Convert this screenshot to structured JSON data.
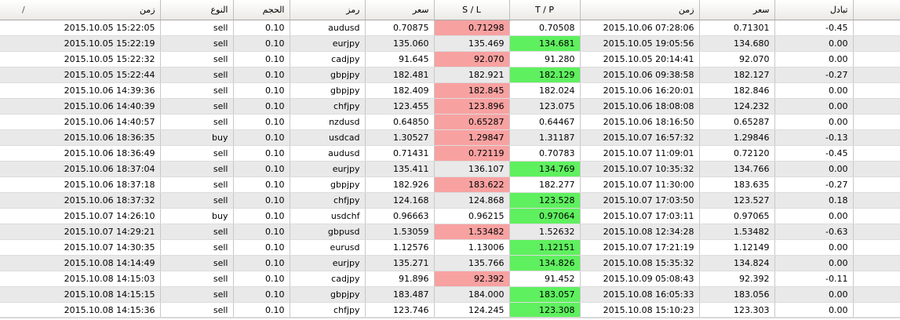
{
  "headers": {
    "open_time": "زمن",
    "sort_marker": "/",
    "type": "النوع",
    "volume": "الحجم",
    "symbol": "رمز",
    "open_price": "سعر",
    "sl": "S / L",
    "tp": "T / P",
    "close_time": "زمن",
    "close_price": "سعر",
    "swap": "تبادل"
  },
  "rows": [
    {
      "open_time": "2015.10.05 15:22:05",
      "type": "sell",
      "volume": "0.10",
      "symbol": "audusd",
      "open_price": "0.70875",
      "sl": "0.71298",
      "tp": "0.70508",
      "close_time": "2015.10.06 07:28:06",
      "close_price": "0.71301",
      "swap": "-0.45",
      "hit": "sl"
    },
    {
      "open_time": "2015.10.05 15:22:19",
      "type": "sell",
      "volume": "0.10",
      "symbol": "eurjpy",
      "open_price": "135.060",
      "sl": "135.469",
      "tp": "134.681",
      "close_time": "2015.10.05 19:05:56",
      "close_price": "134.680",
      "swap": "0.00",
      "hit": "tp"
    },
    {
      "open_time": "2015.10.05 15:22:32",
      "type": "sell",
      "volume": "0.10",
      "symbol": "cadjpy",
      "open_price": "91.645",
      "sl": "92.070",
      "tp": "91.280",
      "close_time": "2015.10.05 20:14:41",
      "close_price": "92.070",
      "swap": "0.00",
      "hit": "sl"
    },
    {
      "open_time": "2015.10.05 15:22:44",
      "type": "sell",
      "volume": "0.10",
      "symbol": "gbpjpy",
      "open_price": "182.481",
      "sl": "182.921",
      "tp": "182.129",
      "close_time": "2015.10.06 09:38:58",
      "close_price": "182.127",
      "swap": "-0.27",
      "hit": "tp"
    },
    {
      "open_time": "2015.10.06 14:39:36",
      "type": "sell",
      "volume": "0.10",
      "symbol": "gbpjpy",
      "open_price": "182.409",
      "sl": "182.845",
      "tp": "182.024",
      "close_time": "2015.10.06 16:20:01",
      "close_price": "182.846",
      "swap": "0.00",
      "hit": "sl"
    },
    {
      "open_time": "2015.10.06 14:40:39",
      "type": "sell",
      "volume": "0.10",
      "symbol": "chfjpy",
      "open_price": "123.455",
      "sl": "123.896",
      "tp": "123.075",
      "close_time": "2015.10.06 18:08:08",
      "close_price": "124.232",
      "swap": "0.00",
      "hit": "sl"
    },
    {
      "open_time": "2015.10.06 14:40:57",
      "type": "sell",
      "volume": "0.10",
      "symbol": "nzdusd",
      "open_price": "0.64850",
      "sl": "0.65287",
      "tp": "0.64467",
      "close_time": "2015.10.06 18:16:50",
      "close_price": "0.65287",
      "swap": "0.00",
      "hit": "sl"
    },
    {
      "open_time": "2015.10.06 18:36:35",
      "type": "buy",
      "volume": "0.10",
      "symbol": "usdcad",
      "open_price": "1.30527",
      "sl": "1.29847",
      "tp": "1.31187",
      "close_time": "2015.10.07 16:57:32",
      "close_price": "1.29846",
      "swap": "-0.13",
      "hit": "sl"
    },
    {
      "open_time": "2015.10.06 18:36:49",
      "type": "sell",
      "volume": "0.10",
      "symbol": "audusd",
      "open_price": "0.71431",
      "sl": "0.72119",
      "tp": "0.70783",
      "close_time": "2015.10.07 11:09:01",
      "close_price": "0.72120",
      "swap": "-0.45",
      "hit": "sl"
    },
    {
      "open_time": "2015.10.06 18:37:04",
      "type": "sell",
      "volume": "0.10",
      "symbol": "eurjpy",
      "open_price": "135.411",
      "sl": "136.107",
      "tp": "134.769",
      "close_time": "2015.10.07 10:35:32",
      "close_price": "134.766",
      "swap": "0.00",
      "hit": "tp"
    },
    {
      "open_time": "2015.10.06 18:37:18",
      "type": "sell",
      "volume": "0.10",
      "symbol": "gbpjpy",
      "open_price": "182.926",
      "sl": "183.622",
      "tp": "182.277",
      "close_time": "2015.10.07 11:30:00",
      "close_price": "183.635",
      "swap": "-0.27",
      "hit": "sl"
    },
    {
      "open_time": "2015.10.06 18:37:32",
      "type": "sell",
      "volume": "0.10",
      "symbol": "chfjpy",
      "open_price": "124.168",
      "sl": "124.868",
      "tp": "123.528",
      "close_time": "2015.10.07 17:03:50",
      "close_price": "123.527",
      "swap": "0.18",
      "hit": "tp"
    },
    {
      "open_time": "2015.10.07 14:26:10",
      "type": "buy",
      "volume": "0.10",
      "symbol": "usdchf",
      "open_price": "0.96663",
      "sl": "0.96215",
      "tp": "0.97064",
      "close_time": "2015.10.07 17:03:11",
      "close_price": "0.97065",
      "swap": "0.00",
      "hit": "tp"
    },
    {
      "open_time": "2015.10.07 14:29:21",
      "type": "sell",
      "volume": "0.10",
      "symbol": "gbpusd",
      "open_price": "1.53059",
      "sl": "1.53482",
      "tp": "1.52632",
      "close_time": "2015.10.08 12:34:28",
      "close_price": "1.53482",
      "swap": "-0.63",
      "hit": "sl"
    },
    {
      "open_time": "2015.10.07 14:30:35",
      "type": "sell",
      "volume": "0.10",
      "symbol": "eurusd",
      "open_price": "1.12576",
      "sl": "1.13006",
      "tp": "1.12151",
      "close_time": "2015.10.07 17:21:19",
      "close_price": "1.12149",
      "swap": "0.00",
      "hit": "tp"
    },
    {
      "open_time": "2015.10.08 14:14:49",
      "type": "sell",
      "volume": "0.10",
      "symbol": "eurjpy",
      "open_price": "135.271",
      "sl": "135.766",
      "tp": "134.826",
      "close_time": "2015.10.08 15:35:32",
      "close_price": "134.824",
      "swap": "0.00",
      "hit": "tp"
    },
    {
      "open_time": "2015.10.08 14:15:03",
      "type": "sell",
      "volume": "0.10",
      "symbol": "cadjpy",
      "open_price": "91.896",
      "sl": "92.392",
      "tp": "91.452",
      "close_time": "2015.10.09 05:08:43",
      "close_price": "92.392",
      "swap": "-0.11",
      "hit": "sl"
    },
    {
      "open_time": "2015.10.08 14:15:15",
      "type": "sell",
      "volume": "0.10",
      "symbol": "gbpjpy",
      "open_price": "183.487",
      "sl": "184.000",
      "tp": "183.057",
      "close_time": "2015.10.08 16:05:33",
      "close_price": "183.056",
      "swap": "0.00",
      "hit": "tp"
    },
    {
      "open_time": "2015.10.08 14:15:36",
      "type": "sell",
      "volume": "0.10",
      "symbol": "chfjpy",
      "open_price": "123.746",
      "sl": "124.245",
      "tp": "123.308",
      "close_time": "2015.10.08 15:10:23",
      "close_price": "123.303",
      "swap": "0.00",
      "hit": "tp"
    }
  ],
  "colors": {
    "sl_hit": "#f8a1a1",
    "tp_hit": "#5ff05f",
    "row_alt": "#e9e9e9"
  }
}
